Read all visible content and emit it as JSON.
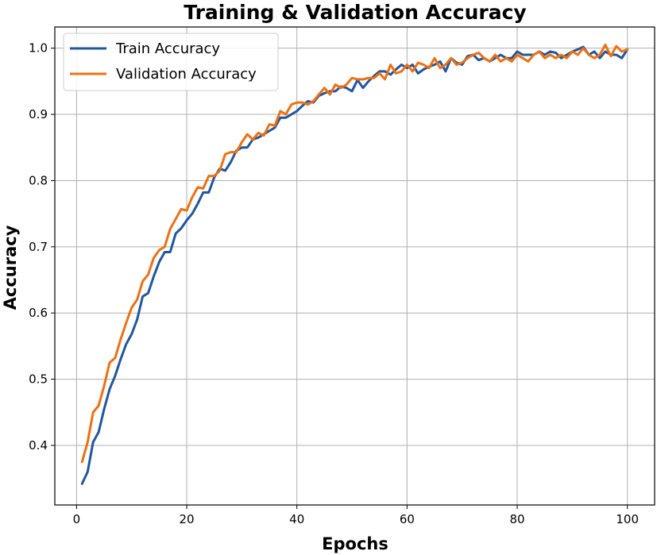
{
  "chart_data": {
    "type": "line",
    "title": "Training & Validation Accuracy",
    "xlabel": "Epochs",
    "ylabel": "Accuracy",
    "xlim": [
      -3.95,
      104.95
    ],
    "ylim": [
      0.31,
      1.032
    ],
    "xticks": [
      0,
      20,
      40,
      60,
      80,
      100
    ],
    "yticks": [
      0.4,
      0.5,
      0.6,
      0.7,
      0.8,
      0.9,
      1.0
    ],
    "yticklabels": [
      "0.4",
      "0.5",
      "0.6",
      "0.7",
      "0.8",
      "0.9",
      "1.0"
    ],
    "grid": true,
    "legend_position": "upper-left",
    "series": [
      {
        "name": "Train Accuracy",
        "color": "#1f57a0",
        "x": [
          1,
          2,
          3,
          4,
          5,
          6,
          7,
          8,
          9,
          10,
          11,
          12,
          13,
          14,
          15,
          16,
          17,
          18,
          19,
          20,
          21,
          22,
          23,
          24,
          25,
          26,
          27,
          28,
          29,
          30,
          31,
          32,
          33,
          34,
          35,
          36,
          37,
          38,
          39,
          40,
          41,
          42,
          43,
          44,
          45,
          46,
          47,
          48,
          49,
          50,
          51,
          52,
          53,
          54,
          55,
          56,
          57,
          58,
          59,
          60,
          61,
          62,
          63,
          64,
          65,
          66,
          67,
          68,
          69,
          70,
          71,
          72,
          73,
          74,
          75,
          76,
          77,
          78,
          79,
          80,
          81,
          82,
          83,
          84,
          85,
          86,
          87,
          88,
          89,
          90,
          91,
          92,
          93,
          94,
          95,
          96,
          97,
          98,
          99,
          100
        ],
        "y": [
          0.342,
          0.36,
          0.405,
          0.42,
          0.455,
          0.485,
          0.505,
          0.53,
          0.553,
          0.568,
          0.59,
          0.625,
          0.63,
          0.655,
          0.677,
          0.692,
          0.692,
          0.72,
          0.728,
          0.74,
          0.75,
          0.765,
          0.782,
          0.782,
          0.805,
          0.818,
          0.815,
          0.828,
          0.845,
          0.85,
          0.85,
          0.862,
          0.865,
          0.87,
          0.875,
          0.88,
          0.895,
          0.895,
          0.9,
          0.905,
          0.913,
          0.92,
          0.918,
          0.928,
          0.932,
          0.935,
          0.935,
          0.942,
          0.94,
          0.935,
          0.952,
          0.94,
          0.95,
          0.958,
          0.965,
          0.965,
          0.96,
          0.968,
          0.975,
          0.97,
          0.975,
          0.962,
          0.968,
          0.972,
          0.975,
          0.98,
          0.965,
          0.985,
          0.978,
          0.975,
          0.988,
          0.99,
          0.982,
          0.985,
          0.98,
          0.985,
          0.99,
          0.985,
          0.985,
          0.995,
          0.99,
          0.99,
          0.99,
          0.995,
          0.99,
          0.995,
          0.993,
          0.985,
          0.99,
          0.995,
          0.998,
          1.002,
          0.99,
          0.995,
          0.985,
          0.995,
          0.99,
          0.99,
          0.985,
          0.998
        ]
      },
      {
        "name": "Validation Accuracy",
        "color": "#f07010",
        "x": [
          1,
          2,
          3,
          4,
          5,
          6,
          7,
          8,
          9,
          10,
          11,
          12,
          13,
          14,
          15,
          16,
          17,
          18,
          19,
          20,
          21,
          22,
          23,
          24,
          25,
          26,
          27,
          28,
          29,
          30,
          31,
          32,
          33,
          34,
          35,
          36,
          37,
          38,
          39,
          40,
          41,
          42,
          43,
          44,
          45,
          46,
          47,
          48,
          49,
          50,
          51,
          52,
          53,
          54,
          55,
          56,
          57,
          58,
          59,
          60,
          61,
          62,
          63,
          64,
          65,
          66,
          67,
          68,
          69,
          70,
          71,
          72,
          73,
          74,
          75,
          76,
          77,
          78,
          79,
          80,
          81,
          82,
          83,
          84,
          85,
          86,
          87,
          88,
          89,
          90,
          91,
          92,
          93,
          94,
          95,
          96,
          97,
          98,
          99,
          100
        ],
        "y": [
          0.375,
          0.405,
          0.45,
          0.46,
          0.49,
          0.525,
          0.532,
          0.56,
          0.585,
          0.608,
          0.62,
          0.648,
          0.658,
          0.683,
          0.695,
          0.7,
          0.727,
          0.742,
          0.757,
          0.755,
          0.775,
          0.79,
          0.788,
          0.807,
          0.807,
          0.815,
          0.84,
          0.843,
          0.843,
          0.858,
          0.87,
          0.862,
          0.872,
          0.868,
          0.885,
          0.883,
          0.905,
          0.9,
          0.915,
          0.918,
          0.918,
          0.915,
          0.92,
          0.93,
          0.94,
          0.93,
          0.945,
          0.94,
          0.945,
          0.955,
          0.953,
          0.953,
          0.955,
          0.955,
          0.962,
          0.953,
          0.975,
          0.962,
          0.965,
          0.975,
          0.965,
          0.978,
          0.975,
          0.97,
          0.985,
          0.97,
          0.975,
          0.985,
          0.975,
          0.978,
          0.985,
          0.99,
          0.993,
          0.985,
          0.98,
          0.99,
          0.98,
          0.985,
          0.98,
          0.99,
          0.985,
          0.98,
          0.99,
          0.995,
          0.985,
          0.99,
          0.985,
          0.99,
          0.985,
          0.995,
          0.99,
          1.0,
          0.99,
          0.985,
          0.99,
          1.005,
          0.988,
          1.003,
          0.995,
          0.998
        ]
      }
    ]
  }
}
